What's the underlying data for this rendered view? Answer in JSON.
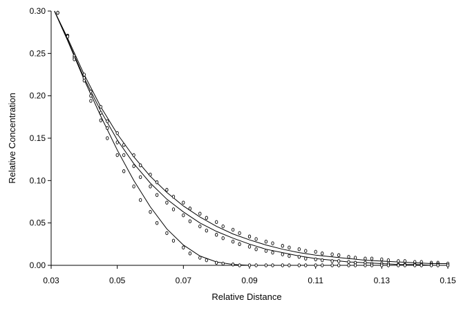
{
  "chart_data": {
    "type": "scatter",
    "title": "",
    "xlabel": "Relative Distance",
    "ylabel": "Relative Concentration",
    "xlim": [
      0.03,
      0.15
    ],
    "ylim": [
      0.0,
      0.3
    ],
    "x_ticks": [
      "0.03",
      "0.05",
      "0.07",
      "0.09",
      "0.11",
      "0.13",
      "0.15"
    ],
    "y_ticks": [
      "0.00",
      "0.05",
      "0.10",
      "0.15",
      "0.20",
      "0.25",
      "0.30"
    ],
    "grid": false,
    "legend": "none",
    "series": [
      {
        "marker": "open-circle",
        "points": [
          [
            0.032,
            0.298
          ],
          [
            0.035,
            0.271
          ],
          [
            0.037,
            0.247
          ],
          [
            0.04,
            0.225
          ],
          [
            0.042,
            0.205
          ],
          [
            0.045,
            0.187
          ],
          [
            0.047,
            0.17
          ],
          [
            0.05,
            0.156
          ],
          [
            0.052,
            0.142
          ],
          [
            0.055,
            0.13
          ],
          [
            0.057,
            0.118
          ],
          [
            0.06,
            0.107
          ],
          [
            0.062,
            0.098
          ],
          [
            0.065,
            0.089
          ],
          [
            0.067,
            0.081
          ],
          [
            0.07,
            0.074
          ],
          [
            0.072,
            0.067
          ],
          [
            0.075,
            0.061
          ],
          [
            0.077,
            0.056
          ],
          [
            0.08,
            0.051
          ],
          [
            0.082,
            0.046
          ],
          [
            0.085,
            0.042
          ],
          [
            0.087,
            0.038
          ],
          [
            0.09,
            0.034
          ],
          [
            0.092,
            0.031
          ],
          [
            0.095,
            0.028
          ],
          [
            0.097,
            0.026
          ],
          [
            0.1,
            0.023
          ],
          [
            0.102,
            0.021
          ],
          [
            0.105,
            0.019
          ],
          [
            0.107,
            0.017
          ],
          [
            0.11,
            0.016
          ],
          [
            0.112,
            0.014
          ],
          [
            0.115,
            0.013
          ],
          [
            0.117,
            0.012
          ],
          [
            0.12,
            0.01
          ],
          [
            0.122,
            0.009
          ],
          [
            0.125,
            0.008
          ],
          [
            0.127,
            0.008
          ],
          [
            0.13,
            0.007
          ],
          [
            0.132,
            0.006
          ],
          [
            0.135,
            0.005
          ],
          [
            0.137,
            0.005
          ],
          [
            0.14,
            0.004
          ],
          [
            0.142,
            0.004
          ],
          [
            0.145,
            0.003
          ],
          [
            0.147,
            0.003
          ],
          [
            0.15,
            0.002
          ]
        ],
        "fit": [
          [
            0.031,
            0.3
          ],
          [
            0.035,
            0.268
          ],
          [
            0.04,
            0.225
          ],
          [
            0.045,
            0.187
          ],
          [
            0.05,
            0.155
          ],
          [
            0.055,
            0.128
          ],
          [
            0.06,
            0.105
          ],
          [
            0.065,
            0.086
          ],
          [
            0.07,
            0.07
          ],
          [
            0.075,
            0.057
          ],
          [
            0.08,
            0.046
          ],
          [
            0.085,
            0.037
          ],
          [
            0.09,
            0.03
          ],
          [
            0.095,
            0.024
          ],
          [
            0.1,
            0.019
          ],
          [
            0.105,
            0.015
          ],
          [
            0.11,
            0.012
          ],
          [
            0.115,
            0.01
          ],
          [
            0.12,
            0.008
          ],
          [
            0.125,
            0.006
          ],
          [
            0.13,
            0.005
          ],
          [
            0.135,
            0.004
          ],
          [
            0.14,
            0.003
          ],
          [
            0.145,
            0.002
          ],
          [
            0.15,
            0.002
          ]
        ]
      },
      {
        "marker": "open-circle",
        "points": [
          [
            0.032,
            0.298
          ],
          [
            0.035,
            0.271
          ],
          [
            0.037,
            0.245
          ],
          [
            0.04,
            0.221
          ],
          [
            0.042,
            0.2
          ],
          [
            0.045,
            0.18
          ],
          [
            0.047,
            0.162
          ],
          [
            0.05,
            0.145
          ],
          [
            0.052,
            0.13
          ],
          [
            0.055,
            0.117
          ],
          [
            0.057,
            0.104
          ],
          [
            0.06,
            0.093
          ],
          [
            0.062,
            0.083
          ],
          [
            0.065,
            0.074
          ],
          [
            0.067,
            0.066
          ],
          [
            0.07,
            0.059
          ],
          [
            0.072,
            0.052
          ],
          [
            0.075,
            0.046
          ],
          [
            0.077,
            0.041
          ],
          [
            0.08,
            0.036
          ],
          [
            0.082,
            0.032
          ],
          [
            0.085,
            0.028
          ],
          [
            0.087,
            0.025
          ],
          [
            0.09,
            0.022
          ],
          [
            0.092,
            0.019
          ],
          [
            0.095,
            0.017
          ],
          [
            0.097,
            0.015
          ],
          [
            0.1,
            0.013
          ],
          [
            0.102,
            0.011
          ],
          [
            0.105,
            0.01
          ],
          [
            0.107,
            0.008
          ],
          [
            0.11,
            0.007
          ],
          [
            0.112,
            0.006
          ],
          [
            0.115,
            0.005
          ],
          [
            0.117,
            0.005
          ],
          [
            0.12,
            0.004
          ],
          [
            0.122,
            0.003
          ],
          [
            0.125,
            0.003
          ],
          [
            0.127,
            0.002
          ],
          [
            0.13,
            0.002
          ],
          [
            0.132,
            0.002
          ],
          [
            0.135,
            0.001
          ],
          [
            0.137,
            0.001
          ],
          [
            0.14,
            0.001
          ],
          [
            0.142,
            0.001
          ],
          [
            0.145,
            0.001
          ],
          [
            0.147,
            0.001
          ],
          [
            0.15,
            0.0
          ]
        ],
        "fit": [
          [
            0.031,
            0.3
          ],
          [
            0.035,
            0.266
          ],
          [
            0.04,
            0.221
          ],
          [
            0.045,
            0.182
          ],
          [
            0.05,
            0.148
          ],
          [
            0.055,
            0.12
          ],
          [
            0.06,
            0.097
          ],
          [
            0.065,
            0.078
          ],
          [
            0.07,
            0.063
          ],
          [
            0.075,
            0.05
          ],
          [
            0.08,
            0.04
          ],
          [
            0.085,
            0.032
          ],
          [
            0.09,
            0.025
          ],
          [
            0.095,
            0.019
          ],
          [
            0.1,
            0.015
          ],
          [
            0.105,
            0.011
          ],
          [
            0.11,
            0.008
          ],
          [
            0.115,
            0.006
          ],
          [
            0.12,
            0.004
          ],
          [
            0.125,
            0.003
          ],
          [
            0.13,
            0.002
          ],
          [
            0.135,
            0.001
          ],
          [
            0.14,
            0.001
          ],
          [
            0.145,
            0.0
          ],
          [
            0.15,
            0.0
          ]
        ]
      },
      {
        "marker": "open-circle",
        "points": [
          [
            0.032,
            0.298
          ],
          [
            0.035,
            0.27
          ],
          [
            0.037,
            0.243
          ],
          [
            0.04,
            0.218
          ],
          [
            0.042,
            0.194
          ],
          [
            0.045,
            0.171
          ],
          [
            0.047,
            0.15
          ],
          [
            0.05,
            0.13
          ],
          [
            0.052,
            0.111
          ],
          [
            0.055,
            0.093
          ],
          [
            0.057,
            0.077
          ],
          [
            0.06,
            0.063
          ],
          [
            0.062,
            0.05
          ],
          [
            0.065,
            0.038
          ],
          [
            0.067,
            0.029
          ],
          [
            0.07,
            0.021
          ],
          [
            0.072,
            0.014
          ],
          [
            0.075,
            0.009
          ],
          [
            0.077,
            0.006
          ],
          [
            0.08,
            0.003
          ],
          [
            0.082,
            0.002
          ],
          [
            0.085,
            0.001
          ],
          [
            0.087,
            0.0
          ],
          [
            0.09,
            0.0
          ],
          [
            0.092,
            0.0
          ],
          [
            0.095,
            0.0
          ],
          [
            0.097,
            0.0
          ],
          [
            0.1,
            0.0
          ],
          [
            0.102,
            0.0
          ],
          [
            0.105,
            0.0
          ],
          [
            0.107,
            0.0
          ],
          [
            0.11,
            0.0
          ],
          [
            0.112,
            0.0
          ],
          [
            0.115,
            0.0
          ],
          [
            0.117,
            0.0
          ],
          [
            0.12,
            0.0
          ],
          [
            0.122,
            0.0
          ],
          [
            0.125,
            0.0
          ],
          [
            0.127,
            0.0
          ],
          [
            0.13,
            0.0
          ],
          [
            0.132,
            0.0
          ],
          [
            0.135,
            0.0
          ],
          [
            0.137,
            0.0
          ],
          [
            0.14,
            0.0
          ],
          [
            0.142,
            0.0
          ],
          [
            0.145,
            0.0
          ],
          [
            0.147,
            0.0
          ],
          [
            0.15,
            0.0
          ]
        ],
        "fit": [
          [
            0.031,
            0.3
          ],
          [
            0.035,
            0.265
          ],
          [
            0.04,
            0.219
          ],
          [
            0.045,
            0.176
          ],
          [
            0.05,
            0.136
          ],
          [
            0.055,
            0.1
          ],
          [
            0.06,
            0.069
          ],
          [
            0.065,
            0.043
          ],
          [
            0.07,
            0.024
          ],
          [
            0.075,
            0.011
          ],
          [
            0.08,
            0.004
          ],
          [
            0.085,
            0.001
          ],
          [
            0.09,
            0.0
          ],
          [
            0.095,
            0.0
          ],
          [
            0.1,
            0.0
          ],
          [
            0.11,
            0.0
          ],
          [
            0.12,
            0.0
          ],
          [
            0.13,
            0.0
          ],
          [
            0.14,
            0.0
          ],
          [
            0.15,
            0.0
          ]
        ]
      }
    ]
  }
}
